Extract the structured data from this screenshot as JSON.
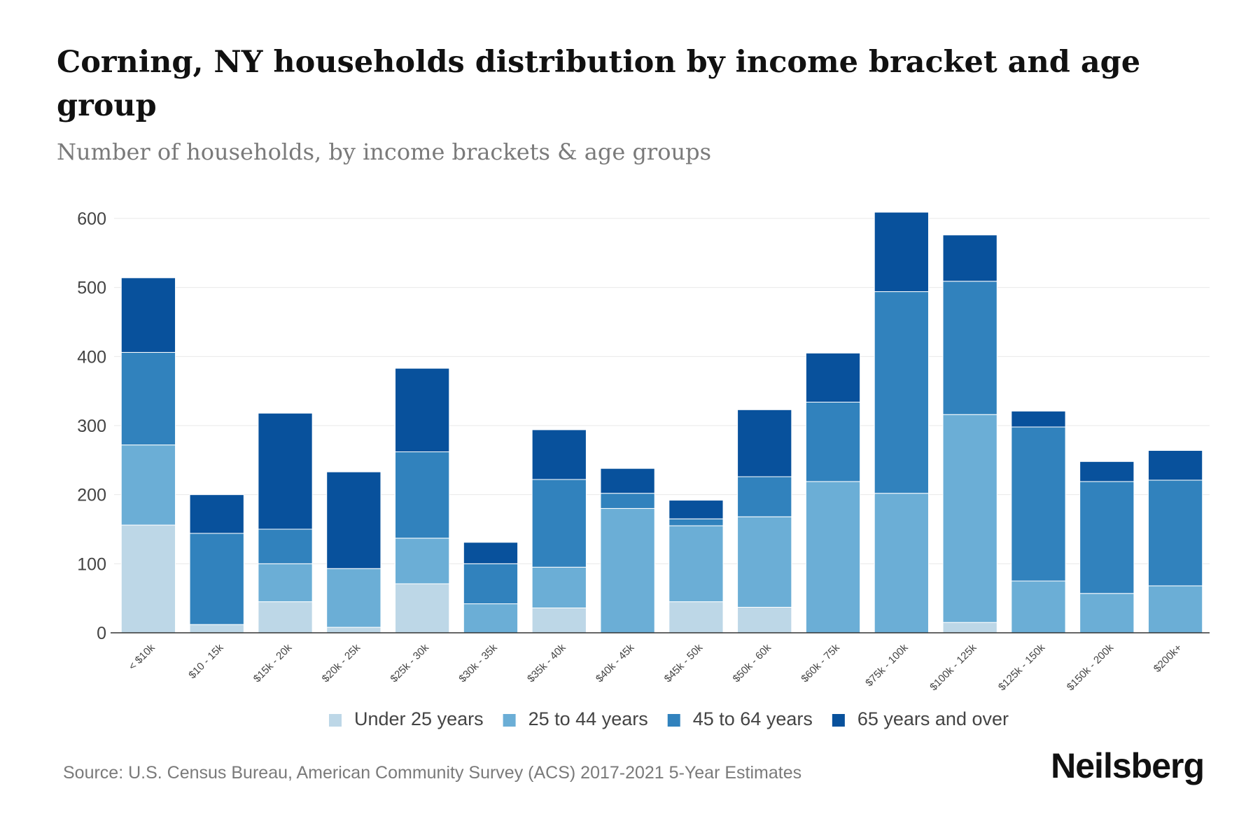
{
  "header": {
    "title": "Corning, NY households distribution by income bracket and age group",
    "subtitle": "Number of households, by income brackets & age groups"
  },
  "footer": {
    "source": "Source: U.S. Census Bureau, American Community Survey (ACS) 2017-2021 5-Year Estimates",
    "brand": "Neilsberg"
  },
  "chart_data": {
    "type": "bar",
    "stacked": true,
    "title": "Corning, NY households distribution by income bracket and age group",
    "subtitle": "Number of households, by income brackets & age groups",
    "xlabel": "",
    "ylabel": "",
    "ylim": [
      0,
      600
    ],
    "yticks": [
      0,
      100,
      200,
      300,
      400,
      500,
      600
    ],
    "grid": true,
    "legend_position": "bottom",
    "categories": [
      "< $10k",
      "$10 - 15k",
      "$15k - 20k",
      "$20k - 25k",
      "$25k - 30k",
      "$30k - 35k",
      "$35k - 40k",
      "$40k - 45k",
      "$45k - 50k",
      "$50k - 60k",
      "$60k - 75k",
      "$75k - 100k",
      "$100k - 125k",
      "$125k - 150k",
      "$150k - 200k",
      "$200k+"
    ],
    "series": [
      {
        "name": "Under 25 years",
        "color": "#bdd7e7",
        "values": [
          156,
          12,
          45,
          8,
          71,
          0,
          36,
          0,
          45,
          37,
          0,
          0,
          15,
          0,
          0,
          0
        ]
      },
      {
        "name": "25 to 44 years",
        "color": "#6baed6",
        "values": [
          116,
          0,
          55,
          85,
          66,
          42,
          59,
          180,
          110,
          131,
          219,
          202,
          301,
          75,
          57,
          68
        ]
      },
      {
        "name": "45 to 64 years",
        "color": "#3182bd",
        "values": [
          134,
          132,
          50,
          0,
          125,
          58,
          127,
          22,
          10,
          58,
          115,
          292,
          193,
          223,
          162,
          153
        ]
      },
      {
        "name": "65 years and over",
        "color": "#08519c",
        "values": [
          108,
          56,
          168,
          140,
          121,
          31,
          72,
          36,
          27,
          97,
          71,
          115,
          67,
          23,
          29,
          43
        ]
      }
    ]
  }
}
